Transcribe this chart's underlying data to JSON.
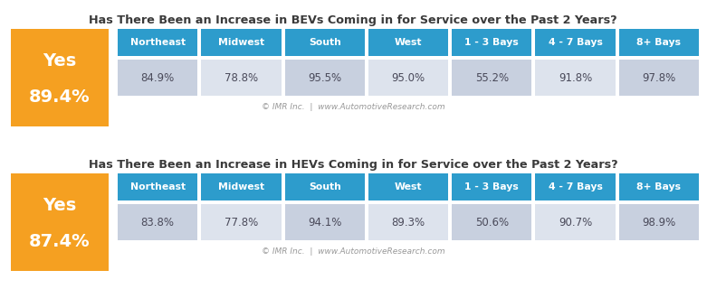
{
  "bev_title": "Has There Been an Increase in BEVs Coming in for Service over the Past 2 Years?",
  "hev_title": "Has There Been an Increase in HEVs Coming in for Service over the Past 2 Years?",
  "bev_yes_label": "Yes",
  "bev_yes_pct": "89.4%",
  "hev_yes_label": "Yes",
  "hev_yes_pct": "87.4%",
  "col_headers": [
    "Northeast",
    "Midwest",
    "South",
    "West",
    "1 - 3 Bays",
    "4 - 7 Bays",
    "8+ Bays"
  ],
  "bev_values": [
    "84.9%",
    "78.8%",
    "95.5%",
    "95.0%",
    "55.2%",
    "91.8%",
    "97.8%"
  ],
  "hev_values": [
    "83.8%",
    "77.8%",
    "94.1%",
    "89.3%",
    "50.6%",
    "90.7%",
    "98.9%"
  ],
  "copyright": "© IMR Inc.  |  www.AutomotiveResearch.com",
  "orange_color": "#F5A021",
  "header_blue": "#2D9CCC",
  "cell_odd": "#C8D0DF",
  "cell_even": "#DDE3ED",
  "title_color": "#3A3A3A",
  "white": "#FFFFFF",
  "data_text_color": "#4A4A5A",
  "copyright_color": "#999999",
  "gap_color": "#FFFFFF"
}
